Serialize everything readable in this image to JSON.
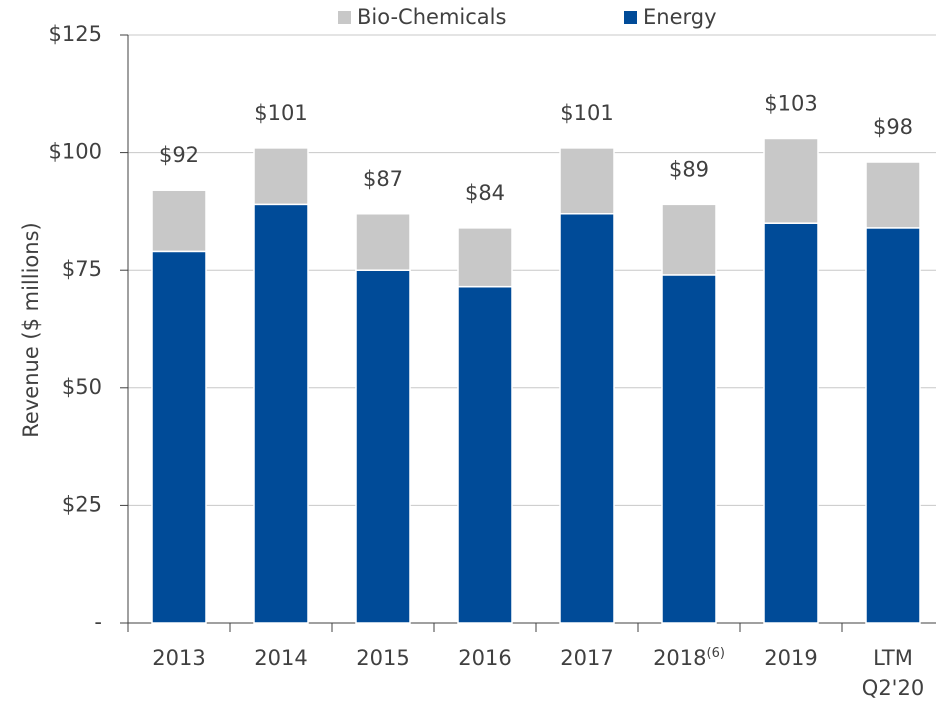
{
  "chart_data": {
    "type": "stacked_bar",
    "y_axis_label": "Revenue ($ millions)",
    "categories": [
      "2013",
      "2014",
      "2015",
      "2016",
      "2017",
      "2018",
      "2019",
      "LTM Q2'20"
    ],
    "category_superscripts": [
      null,
      null,
      null,
      null,
      null,
      "(6)",
      null,
      null
    ],
    "series": [
      {
        "name": "Energy",
        "color": "#004b98",
        "values": [
          79,
          89,
          75,
          71.5,
          87,
          74,
          85,
          84
        ]
      },
      {
        "name": "Bio-Chemicals",
        "color": "#c8c8c8",
        "values": [
          13,
          12,
          12,
          12.5,
          14,
          15,
          18,
          14
        ]
      }
    ],
    "total_labels": [
      "$92",
      "$101",
      "$87",
      "$84",
      "$101",
      "$89",
      "$103",
      "$98"
    ],
    "ylim": [
      0,
      125
    ],
    "yticks": [
      {
        "value": 0,
        "label": "-"
      },
      {
        "value": 25,
        "label": "$25"
      },
      {
        "value": 50,
        "label": "$50"
      },
      {
        "value": 75,
        "label": "$75"
      },
      {
        "value": 100,
        "label": "$100"
      },
      {
        "value": 125,
        "label": "$125"
      }
    ],
    "grid": true
  }
}
